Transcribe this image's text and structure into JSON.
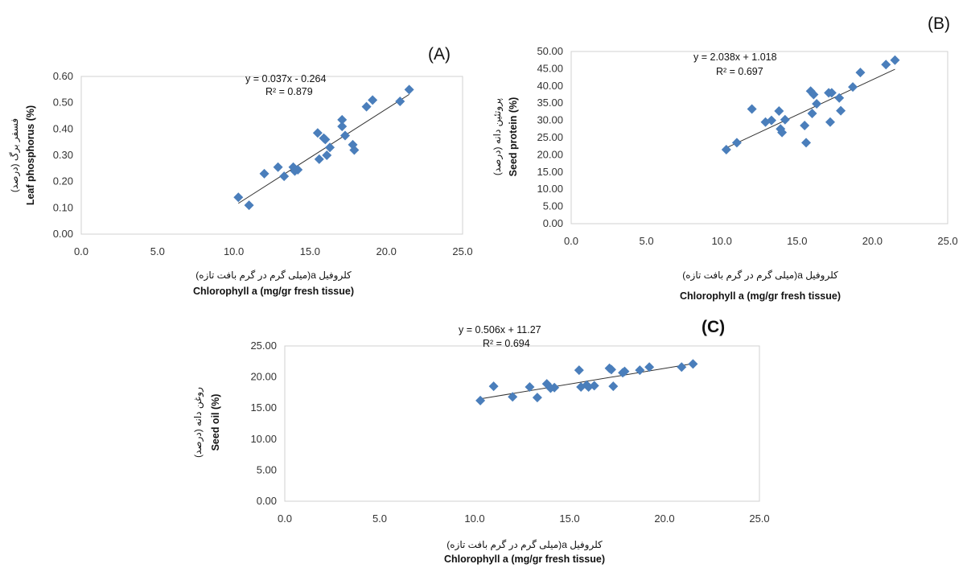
{
  "chart_data": [
    {
      "type": "scatter",
      "panel_label": "(A)",
      "equation": "y = 0.037x - 0.264",
      "r2": "R² = 0.879",
      "xlabel_fa": "کلروفیل a(میلی گرم در گرم بافت تازه)",
      "xlabel": "Chlorophyll a (mg/gr fresh tissue)",
      "ylabel_fa": "فسفر برگ (درصد)",
      "ylabel": "Leaf phosphorus (%)",
      "xlim": [
        0,
        25
      ],
      "ylim": [
        0,
        0.6
      ],
      "xticks": [
        "0.0",
        "5.0",
        "10.0",
        "15.0",
        "20.0",
        "25.0"
      ],
      "yticks": [
        "0.00",
        "0.10",
        "0.20",
        "0.30",
        "0.40",
        "0.50",
        "0.60"
      ],
      "trendline": {
        "slope": 0.037,
        "intercept": -0.264,
        "x_range": [
          10.3,
          21.5
        ]
      },
      "marker_color": "#4a7ebb",
      "points": [
        [
          10.3,
          0.14
        ],
        [
          11.0,
          0.11
        ],
        [
          12.0,
          0.23
        ],
        [
          12.9,
          0.255
        ],
        [
          13.3,
          0.22
        ],
        [
          13.9,
          0.255
        ],
        [
          14.0,
          0.24
        ],
        [
          14.2,
          0.245
        ],
        [
          15.5,
          0.385
        ],
        [
          15.6,
          0.285
        ],
        [
          15.9,
          0.365
        ],
        [
          16.0,
          0.36
        ],
        [
          16.1,
          0.3
        ],
        [
          16.3,
          0.33
        ],
        [
          17.1,
          0.41
        ],
        [
          17.1,
          0.435
        ],
        [
          17.3,
          0.375
        ],
        [
          17.8,
          0.34
        ],
        [
          17.9,
          0.32
        ],
        [
          18.7,
          0.485
        ],
        [
          19.1,
          0.51
        ],
        [
          20.9,
          0.505
        ],
        [
          21.5,
          0.55
        ]
      ]
    },
    {
      "type": "scatter",
      "panel_label": "(B)",
      "equation": "y = 2.038x + 1.018",
      "r2": "R² = 0.697",
      "xlabel_fa": "کلروفیل a(میلی گرم در گرم بافت تازه)",
      "xlabel": "Chlorophyll a (mg/gr fresh tissue)",
      "ylabel_fa": "پروتئین دانه (درصد)",
      "ylabel": "Seed protein (%)",
      "xlim": [
        0,
        25
      ],
      "ylim": [
        0,
        50
      ],
      "xticks": [
        "0.0",
        "5.0",
        "10.0",
        "15.0",
        "20.0",
        "25.0"
      ],
      "yticks": [
        "0.00",
        "5.00",
        "10.00",
        "15.00",
        "20.00",
        "25.00",
        "30.00",
        "35.00",
        "40.00",
        "45.00",
        "50.00"
      ],
      "trendline": {
        "slope": 2.038,
        "intercept": 1.018,
        "x_range": [
          10.3,
          21.5
        ]
      },
      "marker_color": "#4a7ebb",
      "points": [
        [
          10.3,
          21.5
        ],
        [
          11.0,
          23.5
        ],
        [
          12.0,
          33.3
        ],
        [
          12.9,
          29.5
        ],
        [
          13.3,
          30.0
        ],
        [
          13.8,
          32.7
        ],
        [
          13.9,
          27.5
        ],
        [
          14.0,
          26.5
        ],
        [
          14.2,
          30.2
        ],
        [
          15.5,
          28.5
        ],
        [
          15.6,
          23.5
        ],
        [
          15.9,
          38.5
        ],
        [
          16.0,
          32.0
        ],
        [
          16.1,
          37.5
        ],
        [
          16.3,
          34.8
        ],
        [
          17.1,
          38.0
        ],
        [
          17.2,
          29.5
        ],
        [
          17.3,
          38.0
        ],
        [
          17.8,
          36.5
        ],
        [
          17.9,
          32.8
        ],
        [
          18.7,
          39.7
        ],
        [
          19.2,
          43.9
        ],
        [
          20.9,
          46.2
        ],
        [
          21.5,
          47.5
        ]
      ]
    },
    {
      "type": "scatter",
      "panel_label": "(C)",
      "equation": "y = 0.506x + 11.27",
      "r2": "R² = 0.694",
      "xlabel_fa": "کلروفیل a(میلی گرم در گرم بافت تازه)",
      "xlabel": "Chlorophyll a (mg/gr fresh tissue)",
      "ylabel_fa": "روغن دانه (درصد)",
      "ylabel": "Seed oil (%)",
      "xlim": [
        0,
        25
      ],
      "ylim": [
        0,
        25
      ],
      "xticks": [
        "0.0",
        "5.0",
        "10.0",
        "15.0",
        "20.0",
        "25.0"
      ],
      "yticks": [
        "0.00",
        "5.00",
        "10.00",
        "15.00",
        "20.00",
        "25.00"
      ],
      "trendline": {
        "slope": 0.506,
        "intercept": 11.27,
        "x_range": [
          10.3,
          21.5
        ]
      },
      "marker_color": "#4a7ebb",
      "points": [
        [
          10.3,
          16.2
        ],
        [
          11.0,
          18.5
        ],
        [
          12.0,
          16.8
        ],
        [
          12.9,
          18.4
        ],
        [
          13.3,
          16.7
        ],
        [
          13.8,
          18.9
        ],
        [
          14.0,
          18.2
        ],
        [
          14.2,
          18.3
        ],
        [
          15.5,
          21.1
        ],
        [
          15.6,
          18.4
        ],
        [
          15.9,
          18.7
        ],
        [
          16.0,
          18.4
        ],
        [
          16.3,
          18.6
        ],
        [
          17.1,
          21.4
        ],
        [
          17.2,
          21.2
        ],
        [
          17.3,
          18.5
        ],
        [
          17.8,
          20.7
        ],
        [
          17.9,
          20.9
        ],
        [
          18.7,
          21.1
        ],
        [
          19.2,
          21.6
        ],
        [
          20.9,
          21.6
        ],
        [
          21.5,
          22.1
        ]
      ]
    }
  ]
}
